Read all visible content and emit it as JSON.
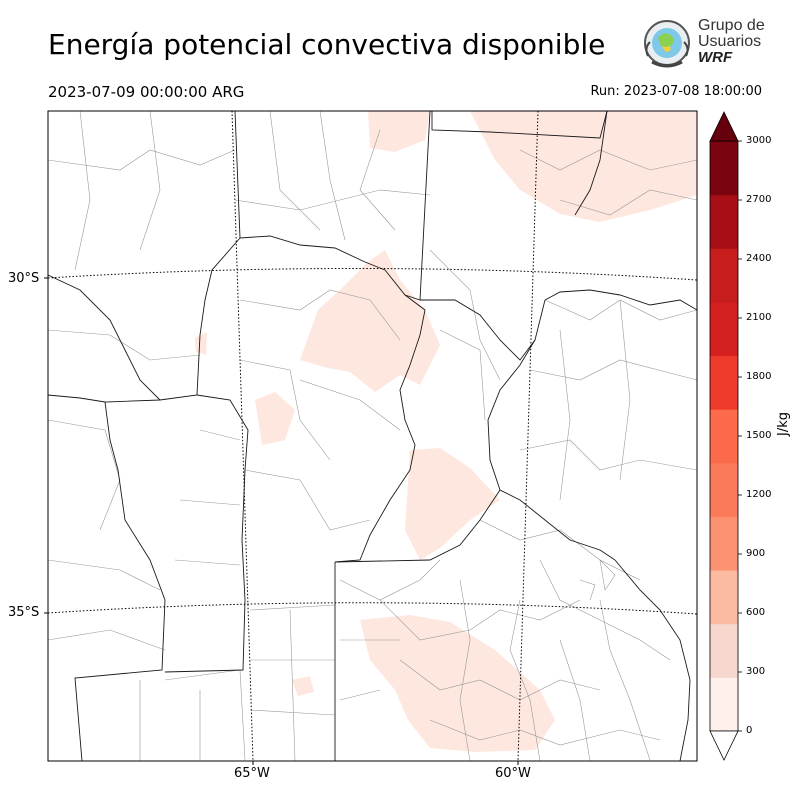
{
  "header": {
    "title": "Energía potencial convectiva disponible",
    "valid_time": "2023-07-09 00:00:00 ARG",
    "run_time": "Run: 2023-07-08 18:00:00"
  },
  "logo": {
    "line1": "Grupo de",
    "line2": "Usuarios",
    "line3": "WRF"
  },
  "map": {
    "lat_labels": [
      "30°S",
      "35°S"
    ],
    "lon_labels": [
      "65°W",
      "60°W"
    ],
    "shading_color": "#fee7df",
    "border_color": "#1a1a1a",
    "department_color": "#999999"
  },
  "colorbar": {
    "unit": "J/kg",
    "ticks": [
      "0",
      "300",
      "600",
      "900",
      "1200",
      "1500",
      "1800",
      "2100",
      "2400",
      "2700",
      "3000"
    ],
    "colors": [
      "#fff0eb",
      "#f6d8ce",
      "#fcbba1",
      "#fc9272",
      "#fb7a5a",
      "#fb6a4a",
      "#ef3b2c",
      "#d42020",
      "#c81d1d",
      "#a50f15",
      "#7a0510"
    ],
    "over_color": "#67000d",
    "under_color": "#ffffff"
  }
}
